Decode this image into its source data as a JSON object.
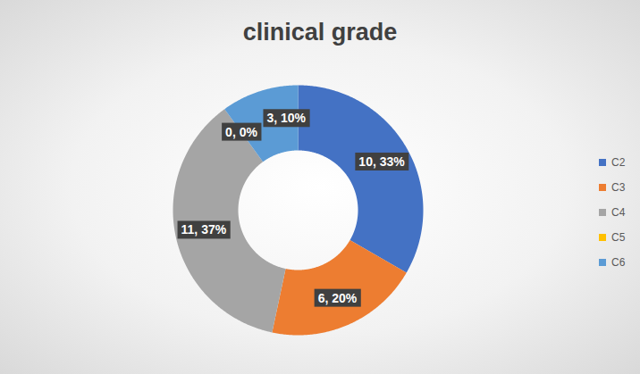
{
  "chart_data": {
    "type": "donut",
    "title": "clinical grade",
    "categories": [
      "C2",
      "C3",
      "C4",
      "C5",
      "C6"
    ],
    "values": [
      10,
      6,
      11,
      0,
      3
    ],
    "value_labels": [
      "10, 33%",
      "6, 20%",
      "11, 37%",
      "0, 0%",
      "3, 10%"
    ],
    "colors": [
      "#4472c4",
      "#ed7d31",
      "#a5a5a5",
      "#ffc000",
      "#5b9bd5"
    ],
    "data_labels": true,
    "legend": "right"
  }
}
